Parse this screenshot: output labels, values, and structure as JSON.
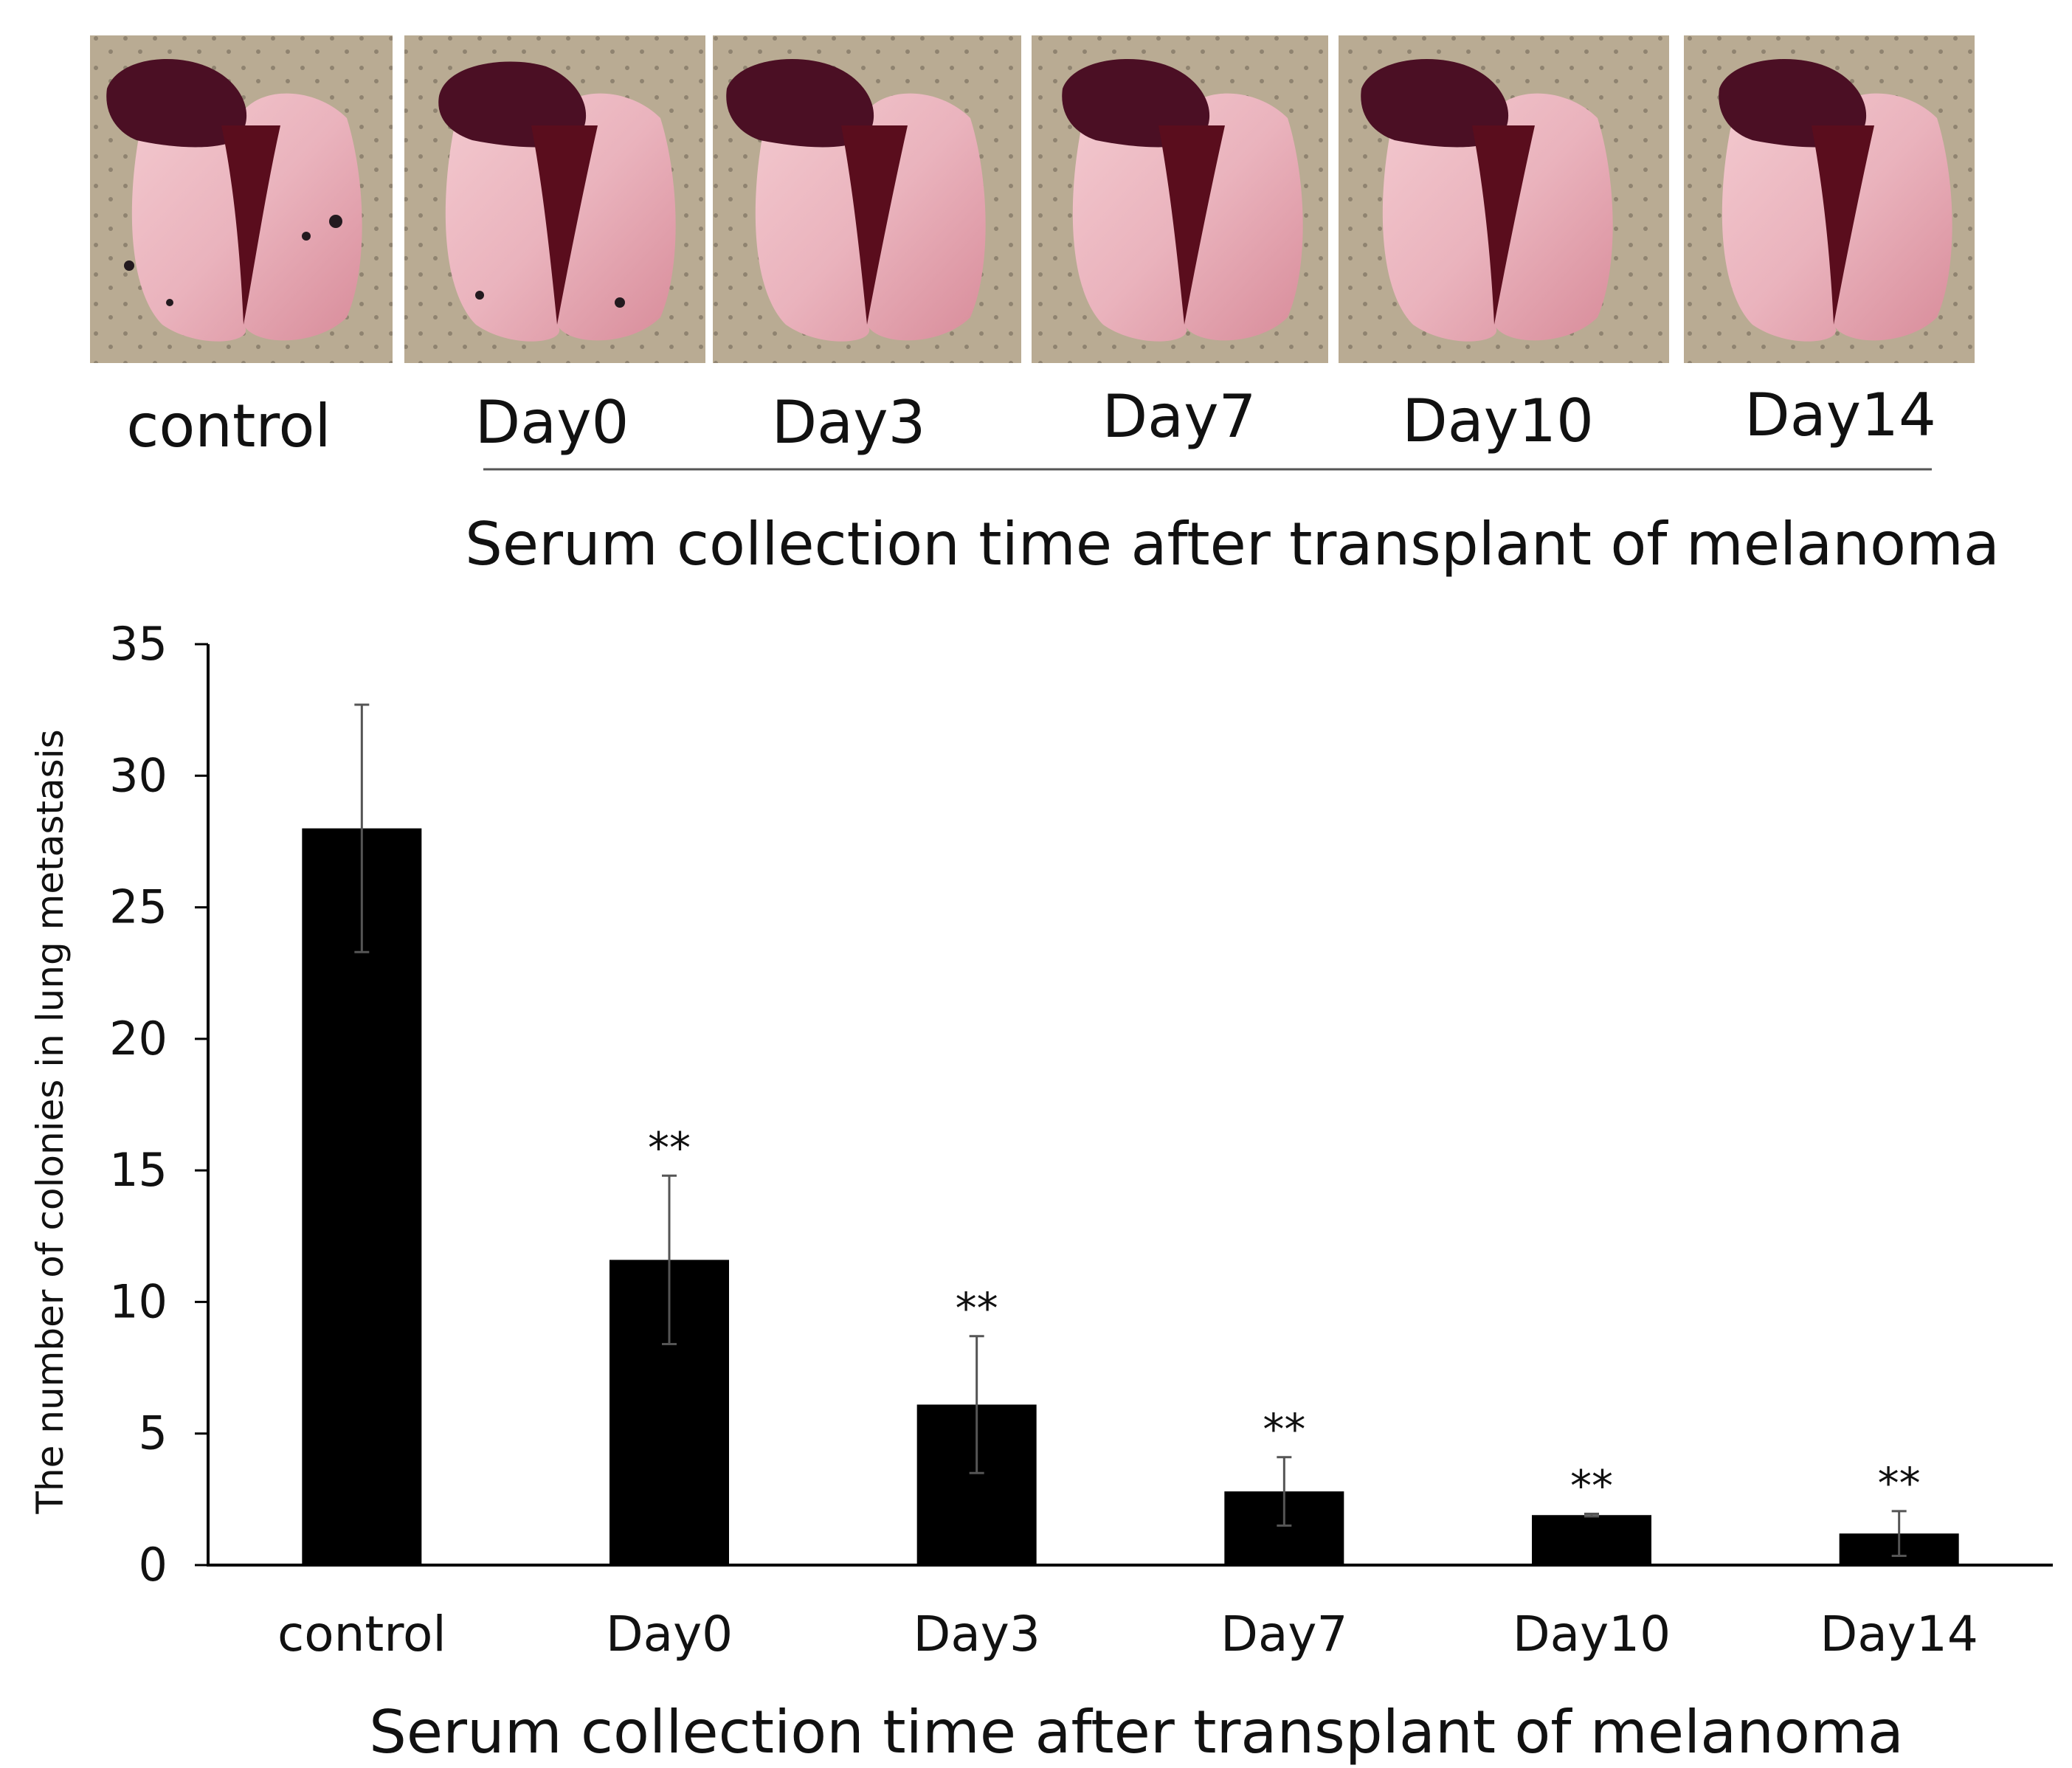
{
  "photo_panel": {
    "labels": [
      "control",
      "Day0",
      "Day3",
      "Day7",
      "Day10",
      "Day14"
    ],
    "caption": "Serum collection time after transplant of melanoma"
  },
  "chart_data": {
    "type": "bar",
    "title": "",
    "categories": [
      "control",
      "Day0",
      "Day3",
      "Day7",
      "Day10",
      "Day14"
    ],
    "values": [
      28.0,
      11.6,
      6.1,
      2.8,
      1.9,
      1.2
    ],
    "errors": [
      4.7,
      3.2,
      2.6,
      1.3,
      0.05,
      0.85
    ],
    "significance": [
      "",
      "**",
      "**",
      "**",
      "**",
      "**"
    ],
    "xlabel": "Serum collection time after transplant of melanoma",
    "ylabel": "The number of colonies in lung metastasis",
    "ylim": [
      0,
      35
    ],
    "yticks": [
      0,
      5,
      10,
      15,
      20,
      25,
      30,
      35
    ],
    "bar_color": "#000000",
    "grid": false
  }
}
